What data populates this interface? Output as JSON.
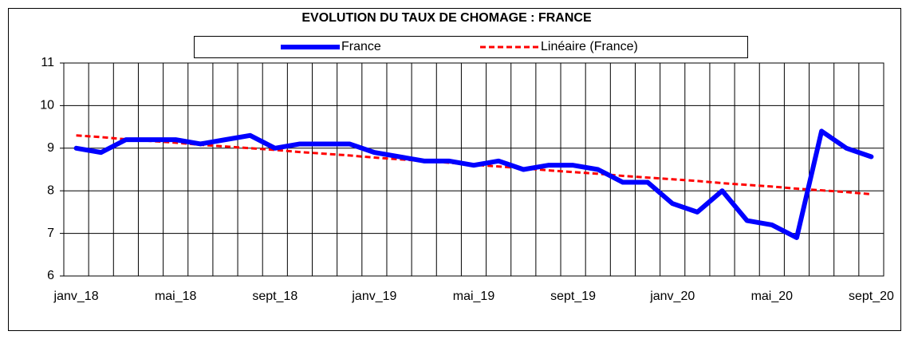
{
  "chart_data": {
    "type": "line",
    "title": "EVOLUTION DU TAUX DE CHOMAGE : FRANCE",
    "categories": [
      "janv_18",
      null,
      null,
      null,
      "mai_18",
      null,
      null,
      null,
      "sept_18",
      null,
      null,
      null,
      "janv_19",
      null,
      null,
      null,
      "mai_19",
      null,
      null,
      null,
      "sept_19",
      null,
      null,
      null,
      "janv_20",
      null,
      null,
      null,
      "mai_20",
      null,
      null,
      null,
      "sept_20"
    ],
    "series": [
      {
        "name": "France",
        "color": "#0000ff",
        "style": "solid",
        "values": [
          9.0,
          8.9,
          9.2,
          9.2,
          9.2,
          9.1,
          9.2,
          9.3,
          9.0,
          9.1,
          9.1,
          9.1,
          8.9,
          8.8,
          8.7,
          8.7,
          8.6,
          8.7,
          8.5,
          8.6,
          8.6,
          8.5,
          8.2,
          8.2,
          7.7,
          7.5,
          8.0,
          7.3,
          7.2,
          6.9,
          9.4,
          9.0,
          8.8
        ]
      },
      {
        "name": "Linéaire (France)",
        "color": "#ff0000",
        "style": "dashed",
        "values": [
          9.3,
          9.26,
          9.21,
          9.17,
          9.13,
          9.08,
          9.04,
          9.0,
          8.96,
          8.91,
          8.87,
          8.83,
          8.78,
          8.74,
          8.7,
          8.66,
          8.61,
          8.57,
          8.53,
          8.48,
          8.44,
          8.4,
          8.35,
          8.31,
          8.27,
          8.23,
          8.18,
          8.14,
          8.1,
          8.05,
          8.01,
          7.97,
          7.92
        ]
      }
    ],
    "ylim": [
      6,
      11
    ],
    "yticks": [
      6,
      7,
      8,
      9,
      10,
      11
    ],
    "grid": true
  }
}
